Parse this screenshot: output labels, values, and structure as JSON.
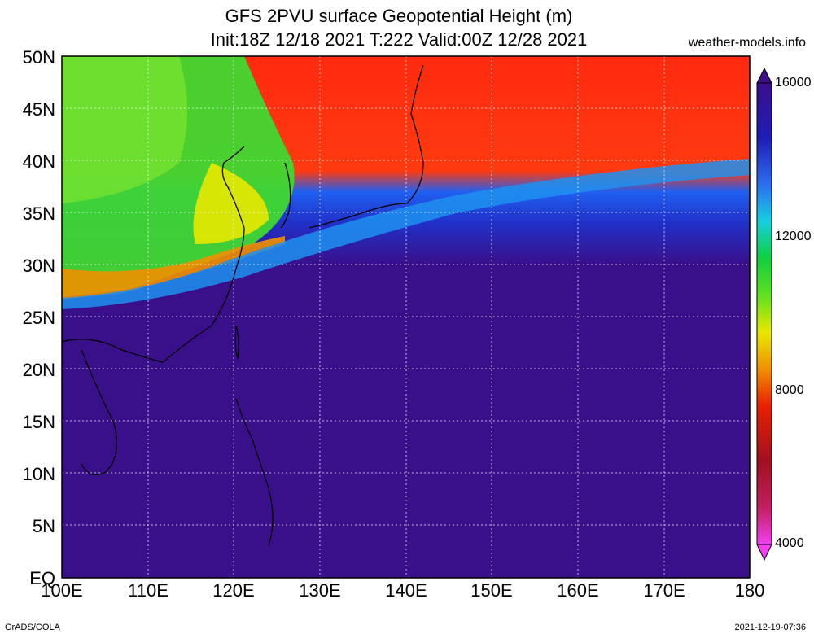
{
  "header": {
    "title_line1": "GFS 2PVU surface Geopotential Height (m)",
    "title_line2": "Init:18Z 12/18 2021 T:222 Valid:00Z 12/28 2021",
    "credit": "weather-models.info"
  },
  "footer": {
    "left": "GrADS/COLA",
    "right": "2021-12-19-07:36"
  },
  "map": {
    "lat_labels": [
      "50N",
      "45N",
      "40N",
      "35N",
      "30N",
      "25N",
      "20N",
      "15N",
      "10N",
      "5N",
      "EQ"
    ],
    "lon_labels": [
      "100E",
      "110E",
      "120E",
      "130E",
      "140E",
      "150E",
      "160E",
      "170E",
      "180"
    ]
  },
  "colorbar": {
    "labels": [
      "16000",
      "12000",
      "8000",
      "4000"
    ],
    "colors": [
      "#3a0f8a",
      "#1e1eb4",
      "#2846d8",
      "#2c6ef0",
      "#1aa0f0",
      "#14d0e0",
      "#10e0a0",
      "#10d040",
      "#60e020",
      "#b0e010",
      "#e8e800",
      "#f0c000",
      "#f09000",
      "#f06000",
      "#e82000",
      "#c81010",
      "#a01020",
      "#c02060",
      "#e020b0",
      "#f040f0"
    ]
  }
}
